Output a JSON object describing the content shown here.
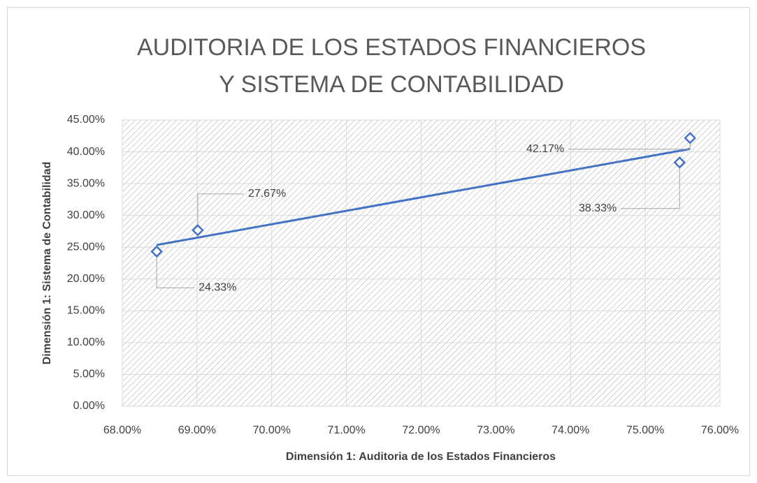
{
  "chart_data": {
    "type": "scatter",
    "title": "AUDITORIA DE LOS ESTADOS FINANCIEROS Y SISTEMA DE CONTABILIDAD",
    "x_label": "Dimensión 1: Auditoria de los Estados Financieros",
    "y_label": "Dimensión 1: Sistema de Contabilidad",
    "series": [
      {
        "color": "#4472c4",
        "x": [
          68.46,
          69.01,
          75.46,
          75.6
        ],
        "values": [
          24.33,
          27.67,
          38.33,
          42.17
        ],
        "value_labels": [
          "24.33%",
          "27.67%",
          "38.33%",
          "42.17%"
        ]
      }
    ],
    "trendline": "linear",
    "xlim": [
      68,
      76
    ],
    "xticks": [
      {
        "value": 68,
        "label": "68.00%"
      },
      {
        "value": 69,
        "label": "69.00%"
      },
      {
        "value": 70,
        "label": "70.00%"
      },
      {
        "value": 71,
        "label": "71.00%"
      },
      {
        "value": 72,
        "label": "72.00%"
      },
      {
        "value": 73,
        "label": "73.00%"
      },
      {
        "value": 74,
        "label": "74.00%"
      },
      {
        "value": 75,
        "label": "75.00%"
      },
      {
        "value": 76,
        "label": "76.00%"
      }
    ],
    "ylim": [
      0,
      45
    ],
    "yticks": [
      {
        "value": 0,
        "label": "0.00%"
      },
      {
        "value": 5,
        "label": "5.00%"
      },
      {
        "value": 10,
        "label": "10.00%"
      },
      {
        "value": 15,
        "label": "15.00%"
      },
      {
        "value": 20,
        "label": "20.00%"
      },
      {
        "value": 25,
        "label": "25.00%"
      },
      {
        "value": 30,
        "label": "30.00%"
      },
      {
        "value": 35,
        "label": "35.00%"
      },
      {
        "value": 40,
        "label": "40.00%"
      },
      {
        "value": 45,
        "label": "45.00%"
      }
    ],
    "grid": true
  }
}
